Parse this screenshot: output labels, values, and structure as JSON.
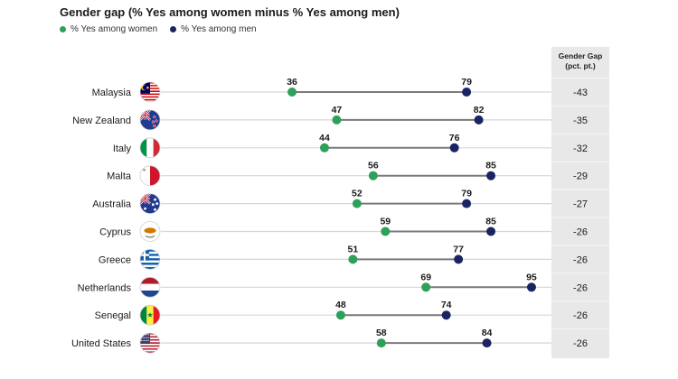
{
  "chart_data": {
    "type": "dumbbell",
    "title": "Gender gap (% Yes among women minus % Yes among men)",
    "legend": [
      {
        "label": "% Yes among women",
        "color": "#2ea05a"
      },
      {
        "label": "% Yes among men",
        "color": "#1b2463"
      }
    ],
    "legend_position": "top-left",
    "xlim": [
      0,
      100
    ],
    "gap_column_header": [
      "Gender Gap",
      "(pct. pt.)"
    ],
    "categories": [
      "Malaysia",
      "New Zealand",
      "Italy",
      "Malta",
      "Australia",
      "Cyprus",
      "Greece",
      "Netherlands",
      "Senegal",
      "United States"
    ],
    "series": [
      {
        "name": "% Yes among women",
        "values": [
          36,
          47,
          44,
          56,
          52,
          59,
          51,
          69,
          48,
          58
        ]
      },
      {
        "name": "% Yes among men",
        "values": [
          79,
          82,
          76,
          85,
          79,
          85,
          77,
          95,
          74,
          84
        ]
      }
    ],
    "gender_gap": [
      "-43",
      "-35",
      "-32",
      "-29",
      "-27",
      "-26",
      "-26",
      "-26",
      "-26",
      "-26"
    ],
    "flags": [
      "malaysia-flag",
      "new-zealand-flag",
      "italy-flag",
      "malta-flag",
      "australia-flag",
      "cyprus-flag",
      "greece-flag",
      "netherlands-flag",
      "senegal-flag",
      "united-states-flag"
    ]
  }
}
